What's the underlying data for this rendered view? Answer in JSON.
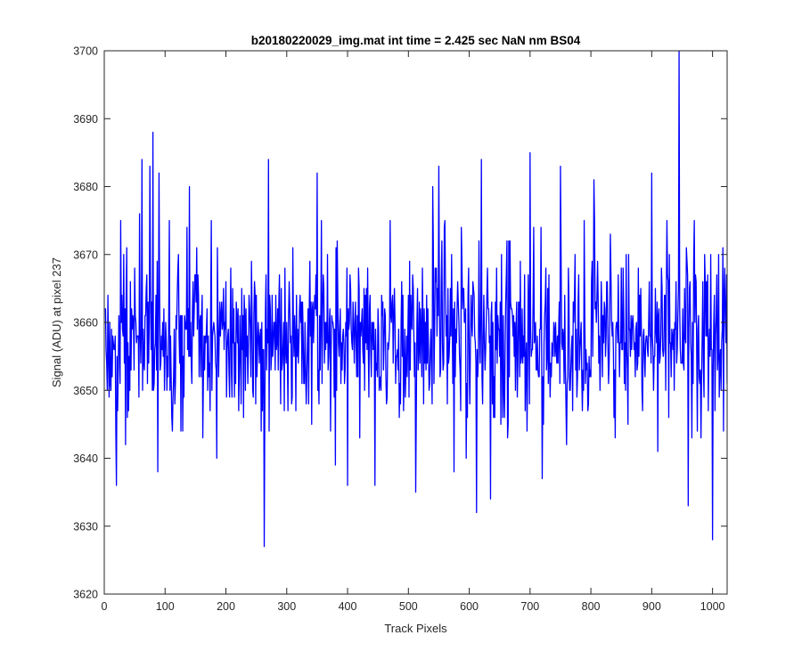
{
  "chart_data": {
    "type": "line",
    "title": "b20180220029_img.mat int time = 2.425 sec  NaN nm BS04",
    "xlabel": "Track Pixels",
    "ylabel": "Signal (ADU) at pixel 237",
    "xlim": [
      0,
      1024
    ],
    "ylim": [
      3620,
      3700
    ],
    "xticks": [
      0,
      100,
      200,
      300,
      400,
      500,
      600,
      700,
      800,
      900,
      1000
    ],
    "yticks": [
      3620,
      3630,
      3640,
      3650,
      3660,
      3670,
      3680,
      3690,
      3700
    ],
    "grid": false,
    "legend": "none",
    "line_color": "#0000ff",
    "series": [
      {
        "x_start": 1,
        "x_step": 1,
        "noise": {
          "mean": 3658,
          "spread": 6.5,
          "seed": 237
        },
        "notable_points": [
          [
            8,
            3649
          ],
          [
            20,
            3636
          ],
          [
            35,
            3642
          ],
          [
            58,
            3676
          ],
          [
            62,
            3684
          ],
          [
            75,
            3683
          ],
          [
            80,
            3688
          ],
          [
            88,
            3638
          ],
          [
            90,
            3682
          ],
          [
            140,
            3680
          ],
          [
            185,
            3640
          ],
          [
            263,
            3627
          ],
          [
            270,
            3684
          ],
          [
            290,
            3648
          ],
          [
            350,
            3682
          ],
          [
            353,
            3648
          ],
          [
            380,
            3639
          ],
          [
            400,
            3636
          ],
          [
            420,
            3643
          ],
          [
            445,
            3636
          ],
          [
            470,
            3675
          ],
          [
            512,
            3635
          ],
          [
            540,
            3680
          ],
          [
            550,
            3683
          ],
          [
            575,
            3638
          ],
          [
            595,
            3640
          ],
          [
            612,
            3632
          ],
          [
            620,
            3684
          ],
          [
            635,
            3634
          ],
          [
            700,
            3685
          ],
          [
            720,
            3637
          ],
          [
            750,
            3683
          ],
          [
            760,
            3642
          ],
          [
            805,
            3681
          ],
          [
            840,
            3643
          ],
          [
            900,
            3682
          ],
          [
            910,
            3641
          ],
          [
            945,
            3700
          ],
          [
            960,
            3633
          ],
          [
            970,
            3675
          ],
          [
            1000,
            3628
          ],
          [
            1010,
            3670
          ],
          [
            1020,
            3668
          ]
        ]
      }
    ]
  }
}
